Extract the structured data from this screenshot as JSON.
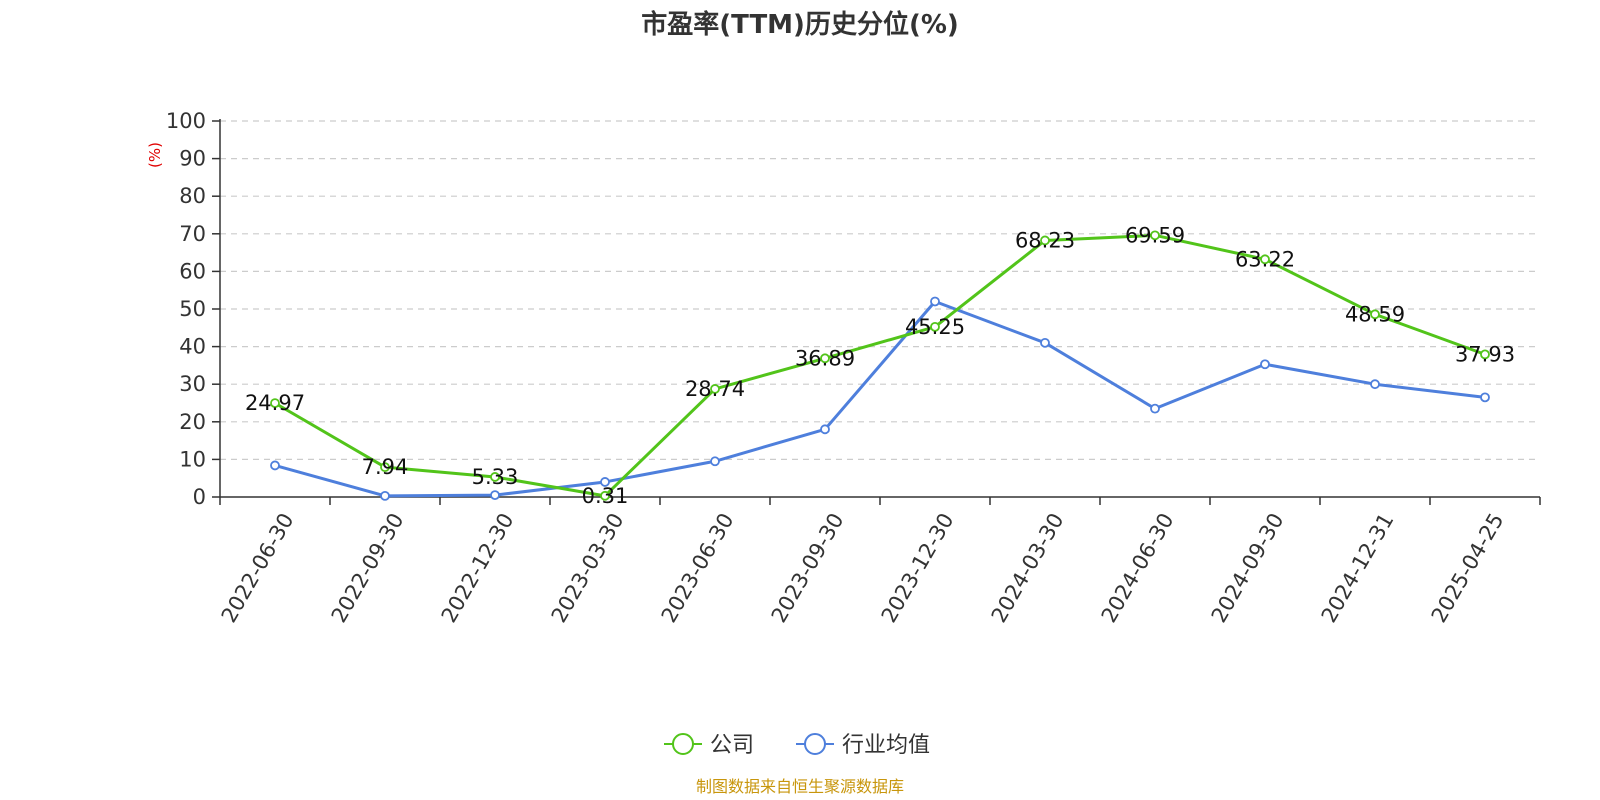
{
  "chart_data": {
    "type": "line",
    "title": "市盈率(TTM)历史分位(%)",
    "ylabel": "(%)",
    "xlabel": "",
    "ylim": [
      0,
      100
    ],
    "yticks": [
      0,
      10,
      20,
      30,
      40,
      50,
      60,
      70,
      80,
      90,
      100
    ],
    "categories": [
      "2022-06-30",
      "2022-09-30",
      "2022-12-30",
      "2023-03-30",
      "2023-06-30",
      "2023-09-30",
      "2023-12-30",
      "2024-03-30",
      "2024-06-30",
      "2024-09-30",
      "2024-12-31",
      "2025-04-25"
    ],
    "grid": true,
    "legend_position": "bottom",
    "series": [
      {
        "name": "公司",
        "color": "#52c41a",
        "show_labels": true,
        "values": [
          24.97,
          7.94,
          5.33,
          0.31,
          28.74,
          36.89,
          45.25,
          68.23,
          69.59,
          63.22,
          48.59,
          37.93
        ]
      },
      {
        "name": "行业均值",
        "color": "#4e7fdc",
        "show_labels": false,
        "values": [
          8.4,
          0.3,
          0.5,
          4.0,
          9.5,
          18.0,
          52.0,
          41.0,
          23.5,
          35.3,
          30.0,
          26.5
        ]
      }
    ]
  },
  "source": "制图数据来自恒生聚源数据库",
  "colors": {
    "unit_label": "#e00000",
    "source": "#c8960c",
    "axis": "#333333",
    "grid": "#cccccc"
  }
}
